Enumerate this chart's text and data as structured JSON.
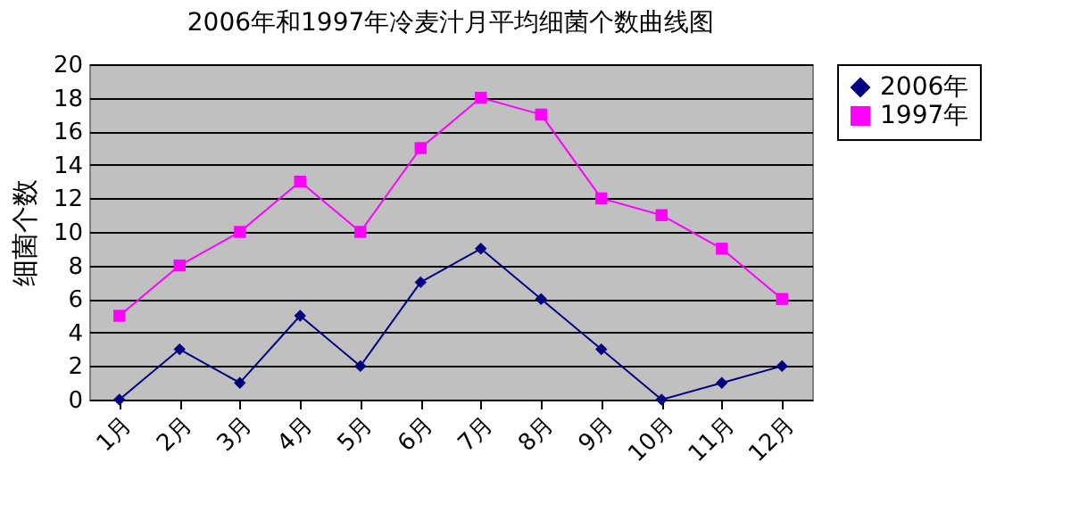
{
  "chart_data": {
    "type": "line",
    "title": "2006年和1997年冷麦汁月平均细菌个数曲线图",
    "ylabel": "细菌个数",
    "categories": [
      "1月",
      "2月",
      "3月",
      "4月",
      "5月",
      "6月",
      "7月",
      "8月",
      "9月",
      "10月",
      "11月",
      "12月"
    ],
    "series": [
      {
        "name": "2006年",
        "color": "#000080",
        "marker": "diamond",
        "values": [
          0,
          3,
          1,
          5,
          2,
          7,
          9,
          6,
          3,
          0,
          1,
          2
        ]
      },
      {
        "name": "1997年",
        "color": "#ff00ff",
        "marker": "square",
        "values": [
          5,
          8,
          10,
          13,
          10,
          15,
          18,
          17,
          12,
          11,
          9,
          6
        ]
      }
    ],
    "ylim": [
      0,
      20
    ],
    "yticks": [
      0,
      2,
      4,
      6,
      8,
      10,
      12,
      14,
      16,
      18,
      20
    ],
    "grid": "y",
    "legend": "right",
    "line_style": "solid"
  }
}
